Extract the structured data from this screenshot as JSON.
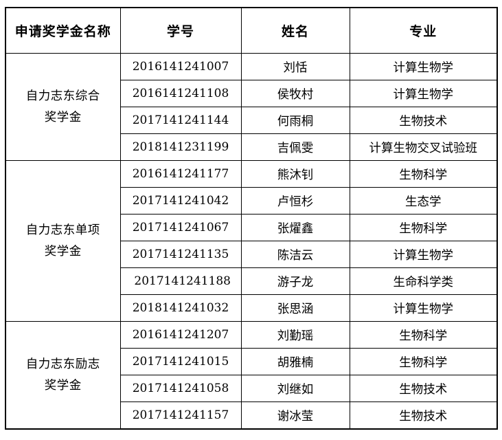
{
  "table": {
    "columns": [
      "申请奖学金名称",
      "学号",
      "姓名",
      "专业"
    ],
    "groups": [
      {
        "scholarship": "自力志东综合奖学金",
        "scholarship_lines": [
          "自力志东综合",
          "奖学金"
        ],
        "rows": [
          {
            "id": "2016141241007",
            "name": "刘恬",
            "major": "计算生物学"
          },
          {
            "id": "2016141241108",
            "name": "侯牧村",
            "major": "计算生物学"
          },
          {
            "id": "2017141241144",
            "name": "何雨桐",
            "major": "生物技术"
          },
          {
            "id": "2018141231199",
            "name": "吉佩雯",
            "major": "计算生物交叉试验班"
          }
        ]
      },
      {
        "scholarship": "自力志东单项奖学金",
        "scholarship_lines": [
          "自力志东单项",
          "奖学金"
        ],
        "rows": [
          {
            "id": "2016141241177",
            "name": "熊沐钊",
            "major": "生物科学"
          },
          {
            "id": "2017141241042",
            "name": "卢恒杉",
            "major": "生态学"
          },
          {
            "id": "2017141241067",
            "name": "张燿鑫",
            "major": "生物科学"
          },
          {
            "id": "2017141241135",
            "name": "陈洁云",
            "major": "计算生物学"
          },
          {
            "id": " 2017141241188",
            "name": "游子龙",
            "major": "生命科学类"
          },
          {
            "id": "2018141241032",
            "name": "张思涵",
            "major": "计算生物学"
          }
        ]
      },
      {
        "scholarship": "自力志东励志奖学金",
        "scholarship_lines": [
          "自力志东励志",
          "奖学金"
        ],
        "rows": [
          {
            "id": "2016141241207",
            "name": "刘勤瑶",
            "major": "生物科学"
          },
          {
            "id": "2017141241015",
            "name": "胡雅楠",
            "major": "生物科学"
          },
          {
            "id": "2017141241058",
            "name": "刘继如",
            "major": "生物技术"
          },
          {
            "id": "2017141241157",
            "name": "谢冰莹",
            "major": "生物技术"
          }
        ]
      }
    ]
  }
}
